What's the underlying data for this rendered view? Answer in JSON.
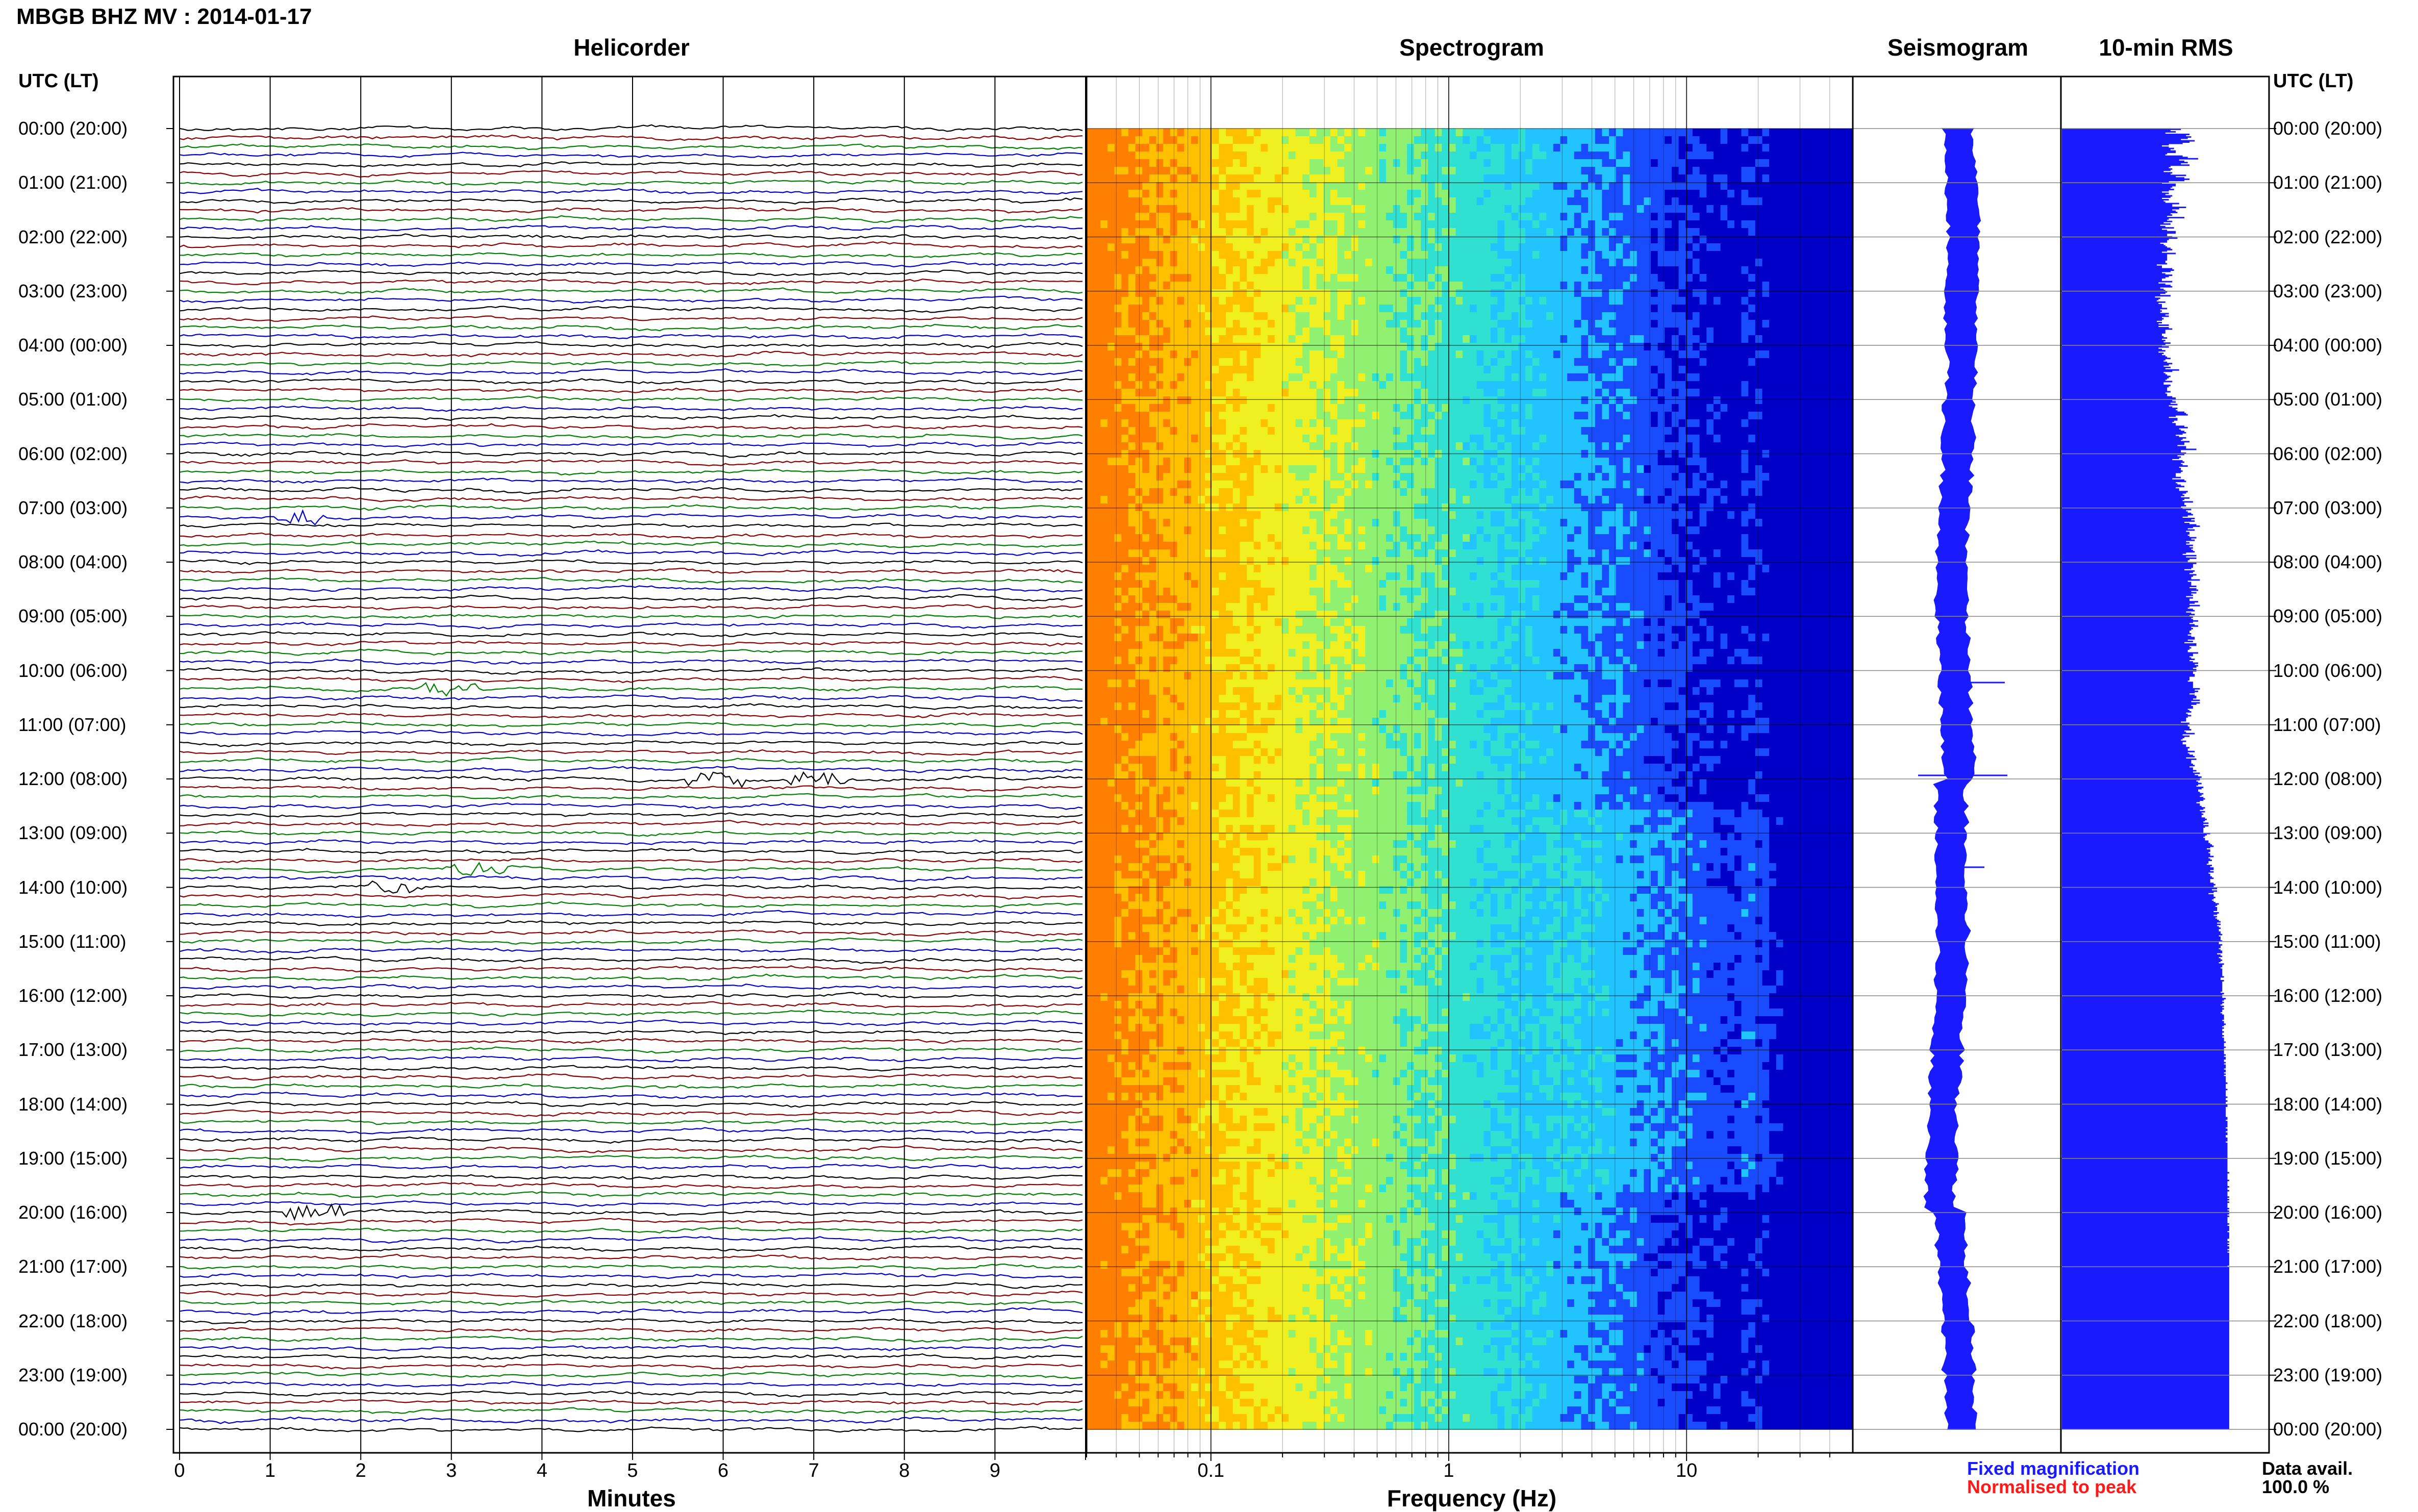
{
  "title": "MBGB BHZ MV : 2014-01-17",
  "panels": {
    "helicorder": "Helicorder",
    "spectrogram": "Spectrogram",
    "seismogram": "Seismogram",
    "rms": "10-min RMS"
  },
  "utc_header": "UTC (LT)",
  "utc_header_right": "UTC (LT)",
  "time_labels": [
    "00:00 (20:00)",
    "01:00 (21:00)",
    "02:00 (22:00)",
    "03:00 (23:00)",
    "04:00 (00:00)",
    "05:00 (01:00)",
    "06:00 (02:00)",
    "07:00 (03:00)",
    "08:00 (04:00)",
    "09:00 (05:00)",
    "10:00 (06:00)",
    "11:00 (07:00)",
    "12:00 (08:00)",
    "13:00 (09:00)",
    "14:00 (10:00)",
    "15:00 (11:00)",
    "16:00 (12:00)",
    "17:00 (13:00)",
    "18:00 (14:00)",
    "19:00 (15:00)",
    "20:00 (16:00)",
    "21:00 (17:00)",
    "22:00 (18:00)",
    "23:00 (19:00)",
    "00:00 (20:00)"
  ],
  "legend": {
    "fixed": "Fixed magnification",
    "normalised": "Normalised to peak",
    "fixed_color": "#1a1aff",
    "normalised_color": "#ff1a1a"
  },
  "data_availability": {
    "label": "Data avail.",
    "value": "100.0 %"
  },
  "chart_data": [
    {
      "type": "line",
      "name": "Helicorder",
      "xlabel": "Minutes",
      "x_ticks": [
        "0",
        "1",
        "2",
        "3",
        "4",
        "5",
        "6",
        "7",
        "8",
        "9"
      ],
      "xlim": [
        0,
        10
      ],
      "rows_per_hour": 6,
      "hours": 24,
      "trace_colors": [
        "#000000",
        "#8b0000",
        "#008000",
        "#0000cd"
      ],
      "events": [
        {
          "hour": 7.2,
          "minute": 1.4,
          "color": "#000000"
        },
        {
          "hour": 10.3,
          "minute": 3.0,
          "color": "#0000cd"
        },
        {
          "hour": 12.0,
          "minute": 5.9,
          "color": "#008000"
        },
        {
          "hour": 12.0,
          "minute": 7.1,
          "color": "#000000"
        },
        {
          "hour": 13.7,
          "minute": 3.3,
          "color": "#0000cd"
        },
        {
          "hour": 14.0,
          "minute": 2.4,
          "color": "#000000"
        },
        {
          "hour": 20.0,
          "minute": 1.5,
          "color": "#000000"
        }
      ]
    },
    {
      "type": "heatmap",
      "name": "Spectrogram",
      "xlabel": "Frequency (Hz)",
      "x_scale": "log",
      "xlim": [
        0.03,
        50
      ],
      "x_ticks": [
        "0.1",
        "1",
        "10"
      ],
      "x_tick_values": [
        0.1,
        1,
        10
      ],
      "colormap": [
        "#0000c8",
        "#1a4cff",
        "#22c4ff",
        "#30e0d0",
        "#90f070",
        "#f0f020",
        "#ffc000",
        "#ff8000"
      ]
    },
    {
      "type": "line",
      "name": "Seismogram"
    },
    {
      "type": "bar",
      "name": "10-min RMS",
      "orientation": "horizontal",
      "bin_minutes": 10,
      "values": [
        0.69,
        0.63,
        0.66,
        0.6,
        0.74,
        0.72,
        0.75,
        0.73,
        0.69,
        0.77,
        0.74,
        0.7,
        0.62,
        0.58,
        0.62,
        0.65,
        0.63,
        0.66,
        0.66,
        0.61,
        0.6,
        0.7,
        0.73,
        0.79,
        0.68,
        0.71,
        0.73,
        0.69,
        0.74,
        0.63,
        0.62,
        0.64,
        0.63,
        0.59,
        0.64,
        0.63,
        0.72,
        0.66,
        0.71,
        0.74,
        0.71,
        0.62,
        0.58,
        0.66,
        0.66,
        0.64,
        0.63,
        0.65,
        0.62,
        0.58,
        0.62,
        0.6,
        0.64,
        0.63,
        0.58,
        0.62,
        0.59,
        0.6,
        0.68,
        0.64,
        0.64,
        0.72,
        0.68,
        0.64,
        0.66,
        0.67,
        0.63,
        0.64,
        0.61,
        0.71,
        0.62,
        0.61,
        0.64,
        0.59,
        0.63,
        0.57,
        0.6,
        0.65,
        0.58,
        0.61,
        0.66,
        0.66,
        0.61,
        0.61,
        0.64,
        0.67,
        0.62,
        0.61,
        0.61,
        0.57,
        0.59,
        0.6,
        0.61,
        0.63,
        0.64,
        0.61,
        0.58,
        0.66,
        0.61,
        0.61,
        0.61,
        0.61,
        0.61,
        0.6,
        0.6,
        0.61,
        0.55,
        0.58,
        0.58,
        0.64,
        0.65,
        0.63,
        0.58,
        0.6,
        0.64,
        0.62,
        0.6,
        0.58,
        0.58,
        0.64,
        0.56,
        0.6,
        0.63,
        0.64,
        0.57,
        0.59,
        0.6,
        0.61,
        0.6,
        0.57,
        0.63,
        0.54,
        0.57,
        0.56,
        0.55,
        0.6,
        0.56,
        0.58,
        0.58,
        0.58,
        0.61,
        0.57,
        0.58,
        0.57,
        0.62,
        0.6,
        0.62,
        0.58,
        0.59,
        0.58,
        0.55,
        0.58,
        0.56,
        0.62,
        0.56,
        0.62,
        0.64,
        0.6,
        0.6,
        0.6,
        0.58,
        0.58,
        0.59,
        0.61,
        0.58,
        0.6,
        0.59,
        0.63,
        0.6,
        0.58,
        0.62,
        0.56,
        0.58,
        0.6,
        0.56,
        0.59,
        0.58,
        0.6,
        0.61,
        0.63,
        0.6,
        0.59,
        0.61,
        0.64,
        0.62,
        0.59,
        0.63,
        0.6,
        0.68,
        0.64,
        0.59,
        0.6,
        0.61,
        0.63,
        0.62,
        0.61,
        0.6,
        0.64,
        0.59,
        0.59,
        0.63,
        0.62,
        0.61,
        0.61,
        0.61,
        0.63,
        0.6,
        0.61,
        0.61,
        0.64,
        0.66,
        0.66,
        0.64,
        0.66,
        0.63,
        0.67,
        0.62,
        0.64,
        0.67,
        0.66,
        0.67,
        0.71,
        0.72,
        0.73,
        0.66,
        0.62,
        0.67,
        0.67,
        0.65,
        0.64,
        0.66,
        0.66,
        0.71,
        0.73,
        0.68,
        0.69,
        0.71,
        0.72,
        0.7,
        0.66,
        0.68,
        0.72,
        0.7,
        0.69,
        0.74,
        0.71,
        0.71,
        0.67,
        0.72,
        0.72,
        0.78,
        0.69,
        0.69,
        0.72,
        0.71,
        0.67,
        0.69,
        0.68,
        0.64,
        0.7,
        0.71,
        0.69,
        0.7,
        0.73,
        0.68,
        0.69,
        0.69,
        0.7,
        0.69,
        0.66,
        0.66,
        0.66,
        0.69,
        0.64,
        0.71,
        0.72,
        0.66,
        0.67,
        0.69,
        0.71,
        0.66,
        0.68,
        0.68,
        0.73,
        0.72,
        0.7,
        0.71,
        0.69,
        0.74,
        0.71,
        0.7,
        0.76,
        0.71,
        0.71,
        0.72,
        0.69,
        0.7,
        0.75,
        0.72,
        0.73,
        0.75,
        0.76,
        0.73,
        0.7,
        0.77,
        0.75,
        0.77,
        0.71,
        0.74,
        0.78,
        0.8,
        0.76,
        0.73,
        0.77,
        0.72,
        0.74,
        0.74,
        0.73,
        0.74,
        0.78,
        0.75,
        0.77,
        0.72,
        0.74,
        0.72,
        0.76,
        0.74,
        0.76,
        0.75,
        0.76,
        0.77,
        0.72,
        0.7,
        0.78,
        0.72,
        0.78,
        0.74,
        0.73,
        0.73,
        0.78,
        0.76,
        0.76,
        0.76,
        0.75,
        0.71,
        0.77,
        0.76,
        0.74,
        0.78,
        0.76,
        0.75,
        0.75,
        0.8,
        0.73,
        0.75,
        0.75,
        0.75,
        0.78,
        0.74,
        0.78,
        0.79,
        0.75,
        0.78,
        0.75,
        0.76,
        0.72,
        0.76,
        0.74,
        0.74,
        0.79,
        0.77,
        0.74,
        0.8,
        0.74,
        0.73,
        0.76,
        0.77,
        0.72,
        0.75,
        0.77,
        0.74,
        0.76,
        0.75,
        0.76,
        0.79,
        0.76,
        0.74,
        0.77,
        0.79,
        0.75,
        0.76,
        0.75,
        0.74,
        0.74,
        0.75,
        0.73,
        0.75,
        0.77,
        0.77,
        0.73,
        0.76,
        0.71,
        0.78,
        0.78,
        0.74,
        0.75,
        0.74,
        0.73,
        0.73,
        0.79,
        0.76,
        0.76,
        0.74,
        0.75,
        0.77,
        0.74,
        0.76,
        0.79,
        0.77,
        0.79,
        0.78,
        0.76,
        0.78,
        0.78,
        0.76,
        0.76,
        0.77,
        0.77,
        0.74,
        0.74,
        0.74,
        0.73,
        0.76,
        0.76,
        0.76,
        0.76,
        0.76,
        0.8,
        0.77,
        0.79,
        0.77,
        0.74,
        0.77,
        0.78,
        0.78,
        0.76,
        0.8,
        0.75,
        0.8,
        0.78,
        0.75,
        0.76,
        0.76,
        0.73,
        0.74,
        0.75,
        0.72,
        0.73,
        0.75,
        0.73,
        0.72,
        0.72,
        0.72,
        0.69,
        0.74,
        0.73,
        0.73,
        0.74,
        0.74,
        0.75,
        0.71,
        0.72,
        0.77,
        0.7,
        0.74,
        0.71,
        0.7,
        0.69,
        0.72,
        0.7,
        0.7,
        0.72,
        0.72,
        0.74,
        0.73,
        0.73,
        0.77,
        0.73,
        0.74,
        0.76,
        0.77,
        0.72,
        0.78,
        0.75,
        0.75,
        0.75,
        0.76,
        0.77,
        0.74,
        0.76,
        0.76,
        0.78,
        0.76,
        0.8,
        0.77,
        0.79,
        0.81,
        0.8,
        0.8,
        0.78,
        0.79,
        0.81,
        0.79,
        0.78,
        0.82,
        0.81,
        0.79,
        0.79,
        0.8,
        0.82,
        0.81,
        0.8,
        0.82,
        0.83,
        0.82,
        0.8,
        0.78,
        0.8,
        0.8,
        0.81,
        0.83,
        0.82,
        0.8,
        0.83,
        0.81,
        0.82,
        0.81,
        0.81,
        0.83,
        0.84,
        0.83,
        0.82,
        0.85,
        0.82,
        0.85,
        0.83,
        0.82,
        0.82,
        0.82,
        0.82,
        0.86,
        0.84,
        0.83,
        0.82,
        0.83,
        0.83,
        0.85,
        0.85,
        0.86,
        0.87,
        0.88,
        0.86,
        0.84,
        0.86,
        0.86,
        0.85,
        0.86,
        0.86,
        0.88,
        0.85,
        0.86,
        0.87,
        0.85,
        0.85,
        0.84,
        0.87,
        0.86,
        0.88,
        0.88,
        0.86,
        0.88,
        0.85,
        0.86,
        0.86,
        0.87,
        0.88,
        0.86,
        0.86,
        0.86,
        0.88,
        0.89,
        0.88,
        0.88,
        0.9,
        0.87,
        0.9,
        0.88,
        0.85,
        0.88,
        0.88,
        0.89,
        0.88,
        0.87,
        0.88,
        0.89,
        0.91,
        0.9,
        0.89,
        0.9,
        0.9,
        0.9,
        0.88,
        0.91,
        0.9,
        0.88,
        0.9,
        0.89,
        0.9,
        0.91,
        0.92,
        0.9,
        0.92,
        0.9,
        0.91,
        0.92,
        0.91,
        0.91,
        0.92,
        0.92,
        0.93,
        0.91,
        0.92,
        0.92,
        0.92,
        0.93,
        0.91,
        0.91,
        0.93,
        0.92,
        0.92,
        0.91,
        0.92,
        0.93,
        0.93,
        0.9,
        0.92,
        0.93,
        0.91,
        0.92,
        0.93,
        0.92,
        0.91,
        0.94,
        0.93,
        0.93,
        0.92,
        0.93,
        0.93,
        0.93,
        0.93,
        0.93,
        0.93,
        0.94,
        0.92,
        0.92,
        0.94,
        0.93,
        0.93,
        0.93,
        0.93,
        0.93,
        0.93,
        0.93,
        0.93,
        0.92,
        0.94,
        0.93,
        0.93,
        0.93,
        0.95,
        0.94,
        0.93,
        0.94,
        0.93,
        0.92,
        0.94,
        0.93,
        0.94,
        0.93,
        0.93,
        0.92,
        0.93,
        0.94,
        0.94,
        0.94,
        0.94,
        0.93,
        0.94,
        0.94,
        0.95,
        0.94,
        0.93,
        0.94,
        0.93,
        0.93,
        0.94,
        0.93,
        0.93,
        0.94,
        0.93,
        0.94,
        0.94,
        0.94,
        0.95,
        0.94,
        0.94,
        0.94,
        0.95,
        0.94,
        0.94,
        0.94,
        0.94,
        0.94,
        0.95,
        0.94,
        0.95,
        0.95,
        0.94,
        0.94,
        0.95,
        0.94,
        0.95,
        0.95,
        0.95,
        0.94,
        0.95,
        0.95,
        0.94,
        0.95,
        0.94,
        0.95,
        0.95,
        0.95,
        0.95,
        0.95,
        0.96,
        0.95,
        0.95,
        0.95,
        0.95,
        0.96,
        0.95,
        0.95,
        0.95,
        0.95,
        0.95,
        0.96,
        0.95,
        0.95,
        0.96,
        0.95,
        0.95,
        0.96,
        0.96,
        0.95,
        0.95,
        0.95,
        0.95,
        0.95,
        0.95,
        0.95,
        0.95,
        0.96,
        0.96,
        0.95,
        0.96,
        0.96,
        0.96,
        0.96,
        0.96,
        0.95,
        0.96,
        0.96,
        0.95,
        0.96,
        0.96,
        0.95,
        0.95,
        0.96,
        0.96,
        0.96,
        0.95,
        0.96,
        0.96,
        0.96,
        0.96,
        0.96,
        0.96,
        0.96,
        0.96,
        0.96,
        0.96,
        0.96,
        0.96,
        0.96,
        0.96,
        0.96,
        0.96,
        0.96,
        0.96,
        0.96,
        0.96,
        0.96,
        0.96,
        0.96,
        0.97,
        0.96,
        0.96,
        0.96,
        0.96,
        0.96,
        0.97,
        0.96,
        0.96,
        0.96,
        0.96,
        0.97,
        0.96,
        0.96,
        0.97,
        0.96,
        0.96,
        0.96,
        0.96,
        0.97,
        0.96,
        0.97,
        0.96,
        0.97,
        0.96,
        0.96,
        0.96,
        0.96,
        0.97,
        0.96,
        0.97,
        0.96,
        0.97,
        0.96,
        0.97,
        0.96,
        0.96,
        0.96,
        0.96,
        0.96,
        0.97,
        0.96,
        0.97,
        0.97,
        0.97,
        0.97,
        0.96,
        0.97,
        0.97,
        0.97,
        0.97,
        0.97,
        0.96,
        0.96,
        0.97,
        0.96,
        0.97,
        0.96,
        0.97,
        0.97,
        0.96,
        0.97,
        0.96,
        0.97,
        0.97,
        0.97,
        0.97,
        0.97,
        0.97,
        0.97,
        0.97,
        0.97,
        0.97,
        0.96,
        0.97,
        0.97,
        0.97,
        0.97,
        0.97,
        0.97,
        0.97,
        0.97,
        0.97,
        0.97,
        0.97,
        0.97,
        0.97,
        0.97,
        0.97,
        0.97,
        0.97,
        0.97,
        0.97,
        0.97,
        0.97,
        0.97,
        0.97,
        0.97,
        0.97,
        0.97,
        0.97,
        0.97,
        0.97,
        0.97,
        0.97,
        0.97,
        0.97,
        0.97,
        0.97,
        0.97,
        0.97,
        0.97,
        0.97,
        0.97,
        0.97,
        0.97,
        0.97,
        0.97,
        0.97,
        0.97,
        0.97,
        0.97,
        0.97,
        0.97,
        0.97,
        0.97,
        0.97,
        0.97,
        0.97,
        0.97,
        0.97,
        0.97,
        0.97,
        0.97,
        0.97,
        0.97,
        0.97,
        0.97,
        0.97,
        0.97,
        0.97,
        0.97,
        0.97,
        0.97,
        0.97,
        0.97,
        0.97,
        0.97,
        0.97,
        0.97,
        0.97,
        0.97,
        0.97,
        0.97,
        0.97,
        0.97,
        0.97,
        0.97,
        0.97,
        0.97,
        0.97,
        0.97,
        0.97,
        0.97,
        0.97,
        0.97,
        0.97,
        0.97,
        0.97,
        0.97,
        0.97,
        0.97,
        0.97,
        0.97,
        0.97,
        0.97,
        0.97,
        0.97,
        0.97,
        0.97,
        0.97,
        0.97,
        0.97,
        0.97,
        0.97,
        0.97,
        0.97,
        0.97,
        0.97,
        0.97,
        0.97,
        0.97,
        0.97,
        0.97,
        0.97,
        0.97,
        0.97,
        0.97,
        0.97,
        0.97,
        0.97
      ]
    }
  ]
}
